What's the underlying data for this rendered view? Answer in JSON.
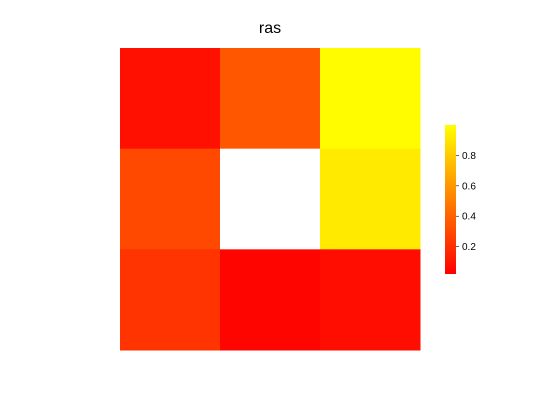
{
  "chart_data": {
    "type": "heatmap",
    "title": "ras",
    "xlabel": "",
    "ylabel": "",
    "rows": 3,
    "cols": 3,
    "values": [
      [
        0.08,
        0.35,
        0.99
      ],
      [
        0.3,
        null,
        0.92
      ],
      [
        0.22,
        0.04,
        0.07
      ]
    ],
    "colorbar": {
      "range": [
        0.02,
        1.0
      ],
      "ticks": [
        0.2,
        0.4,
        0.6,
        0.8
      ],
      "tick_labels": [
        "0.2",
        "0.4",
        "0.6",
        "0.8"
      ],
      "placement": "right"
    },
    "palette": {
      "low": "#ff0000",
      "mid": "#ff8000",
      "high": "#ffff00",
      "missing": "#ffffff"
    }
  }
}
